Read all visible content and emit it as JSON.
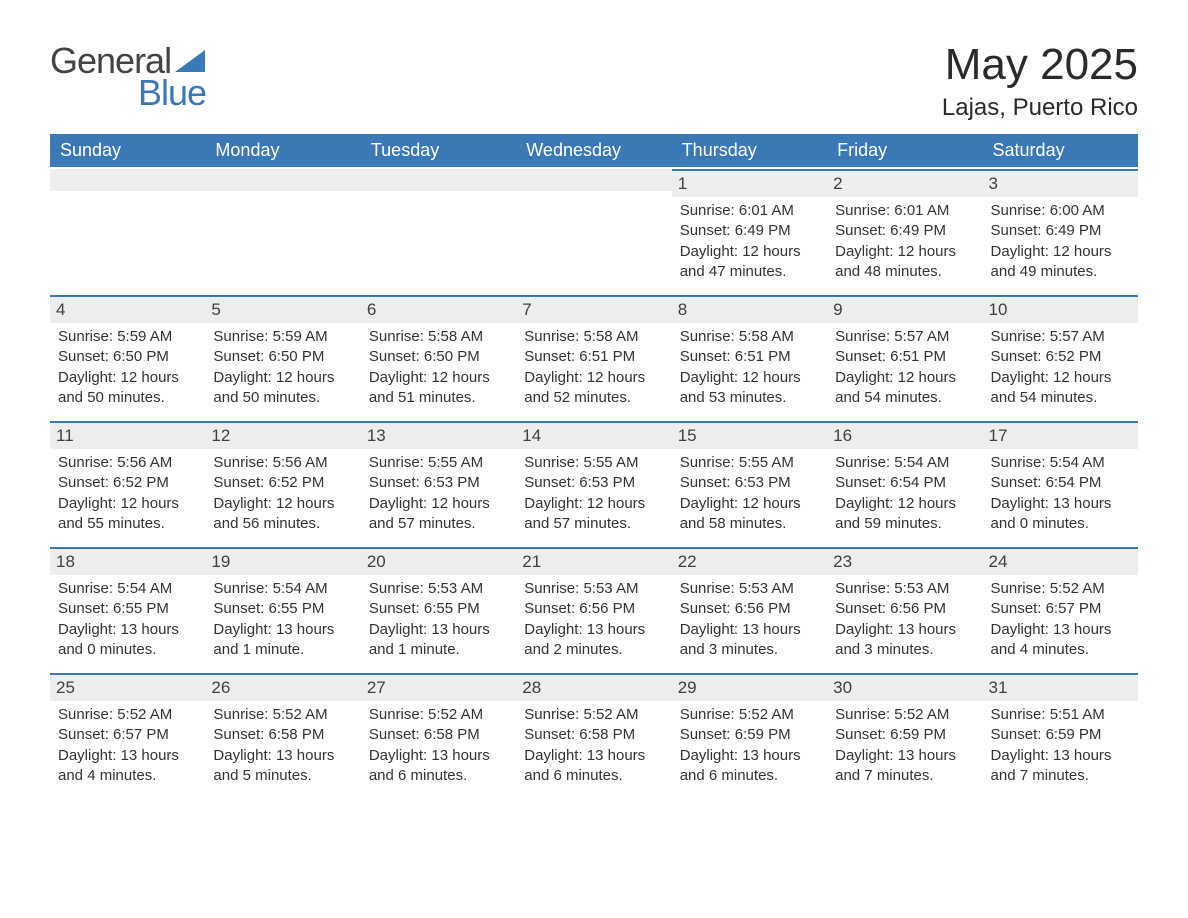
{
  "logo": {
    "text_general": "General",
    "text_blue": "Blue"
  },
  "header": {
    "month_title": "May 2025",
    "location": "Lajas, Puerto Rico"
  },
  "colors": {
    "brand_blue": "#3a78b6",
    "header_text": "#ffffff",
    "day_bar_bg": "#eceded",
    "text": "#333333",
    "page_bg": "#ffffff"
  },
  "calendar": {
    "weekdays": [
      "Sunday",
      "Monday",
      "Tuesday",
      "Wednesday",
      "Thursday",
      "Friday",
      "Saturday"
    ],
    "weeks": [
      [
        null,
        null,
        null,
        null,
        {
          "day": "1",
          "sunrise": "Sunrise: 6:01 AM",
          "sunset": "Sunset: 6:49 PM",
          "daylight": "Daylight: 12 hours and 47 minutes."
        },
        {
          "day": "2",
          "sunrise": "Sunrise: 6:01 AM",
          "sunset": "Sunset: 6:49 PM",
          "daylight": "Daylight: 12 hours and 48 minutes."
        },
        {
          "day": "3",
          "sunrise": "Sunrise: 6:00 AM",
          "sunset": "Sunset: 6:49 PM",
          "daylight": "Daylight: 12 hours and 49 minutes."
        }
      ],
      [
        {
          "day": "4",
          "sunrise": "Sunrise: 5:59 AM",
          "sunset": "Sunset: 6:50 PM",
          "daylight": "Daylight: 12 hours and 50 minutes."
        },
        {
          "day": "5",
          "sunrise": "Sunrise: 5:59 AM",
          "sunset": "Sunset: 6:50 PM",
          "daylight": "Daylight: 12 hours and 50 minutes."
        },
        {
          "day": "6",
          "sunrise": "Sunrise: 5:58 AM",
          "sunset": "Sunset: 6:50 PM",
          "daylight": "Daylight: 12 hours and 51 minutes."
        },
        {
          "day": "7",
          "sunrise": "Sunrise: 5:58 AM",
          "sunset": "Sunset: 6:51 PM",
          "daylight": "Daylight: 12 hours and 52 minutes."
        },
        {
          "day": "8",
          "sunrise": "Sunrise: 5:58 AM",
          "sunset": "Sunset: 6:51 PM",
          "daylight": "Daylight: 12 hours and 53 minutes."
        },
        {
          "day": "9",
          "sunrise": "Sunrise: 5:57 AM",
          "sunset": "Sunset: 6:51 PM",
          "daylight": "Daylight: 12 hours and 54 minutes."
        },
        {
          "day": "10",
          "sunrise": "Sunrise: 5:57 AM",
          "sunset": "Sunset: 6:52 PM",
          "daylight": "Daylight: 12 hours and 54 minutes."
        }
      ],
      [
        {
          "day": "11",
          "sunrise": "Sunrise: 5:56 AM",
          "sunset": "Sunset: 6:52 PM",
          "daylight": "Daylight: 12 hours and 55 minutes."
        },
        {
          "day": "12",
          "sunrise": "Sunrise: 5:56 AM",
          "sunset": "Sunset: 6:52 PM",
          "daylight": "Daylight: 12 hours and 56 minutes."
        },
        {
          "day": "13",
          "sunrise": "Sunrise: 5:55 AM",
          "sunset": "Sunset: 6:53 PM",
          "daylight": "Daylight: 12 hours and 57 minutes."
        },
        {
          "day": "14",
          "sunrise": "Sunrise: 5:55 AM",
          "sunset": "Sunset: 6:53 PM",
          "daylight": "Daylight: 12 hours and 57 minutes."
        },
        {
          "day": "15",
          "sunrise": "Sunrise: 5:55 AM",
          "sunset": "Sunset: 6:53 PM",
          "daylight": "Daylight: 12 hours and 58 minutes."
        },
        {
          "day": "16",
          "sunrise": "Sunrise: 5:54 AM",
          "sunset": "Sunset: 6:54 PM",
          "daylight": "Daylight: 12 hours and 59 minutes."
        },
        {
          "day": "17",
          "sunrise": "Sunrise: 5:54 AM",
          "sunset": "Sunset: 6:54 PM",
          "daylight": "Daylight: 13 hours and 0 minutes."
        }
      ],
      [
        {
          "day": "18",
          "sunrise": "Sunrise: 5:54 AM",
          "sunset": "Sunset: 6:55 PM",
          "daylight": "Daylight: 13 hours and 0 minutes."
        },
        {
          "day": "19",
          "sunrise": "Sunrise: 5:54 AM",
          "sunset": "Sunset: 6:55 PM",
          "daylight": "Daylight: 13 hours and 1 minute."
        },
        {
          "day": "20",
          "sunrise": "Sunrise: 5:53 AM",
          "sunset": "Sunset: 6:55 PM",
          "daylight": "Daylight: 13 hours and 1 minute."
        },
        {
          "day": "21",
          "sunrise": "Sunrise: 5:53 AM",
          "sunset": "Sunset: 6:56 PM",
          "daylight": "Daylight: 13 hours and 2 minutes."
        },
        {
          "day": "22",
          "sunrise": "Sunrise: 5:53 AM",
          "sunset": "Sunset: 6:56 PM",
          "daylight": "Daylight: 13 hours and 3 minutes."
        },
        {
          "day": "23",
          "sunrise": "Sunrise: 5:53 AM",
          "sunset": "Sunset: 6:56 PM",
          "daylight": "Daylight: 13 hours and 3 minutes."
        },
        {
          "day": "24",
          "sunrise": "Sunrise: 5:52 AM",
          "sunset": "Sunset: 6:57 PM",
          "daylight": "Daylight: 13 hours and 4 minutes."
        }
      ],
      [
        {
          "day": "25",
          "sunrise": "Sunrise: 5:52 AM",
          "sunset": "Sunset: 6:57 PM",
          "daylight": "Daylight: 13 hours and 4 minutes."
        },
        {
          "day": "26",
          "sunrise": "Sunrise: 5:52 AM",
          "sunset": "Sunset: 6:58 PM",
          "daylight": "Daylight: 13 hours and 5 minutes."
        },
        {
          "day": "27",
          "sunrise": "Sunrise: 5:52 AM",
          "sunset": "Sunset: 6:58 PM",
          "daylight": "Daylight: 13 hours and 6 minutes."
        },
        {
          "day": "28",
          "sunrise": "Sunrise: 5:52 AM",
          "sunset": "Sunset: 6:58 PM",
          "daylight": "Daylight: 13 hours and 6 minutes."
        },
        {
          "day": "29",
          "sunrise": "Sunrise: 5:52 AM",
          "sunset": "Sunset: 6:59 PM",
          "daylight": "Daylight: 13 hours and 6 minutes."
        },
        {
          "day": "30",
          "sunrise": "Sunrise: 5:52 AM",
          "sunset": "Sunset: 6:59 PM",
          "daylight": "Daylight: 13 hours and 7 minutes."
        },
        {
          "day": "31",
          "sunrise": "Sunrise: 5:51 AM",
          "sunset": "Sunset: 6:59 PM",
          "daylight": "Daylight: 13 hours and 7 minutes."
        }
      ]
    ]
  }
}
